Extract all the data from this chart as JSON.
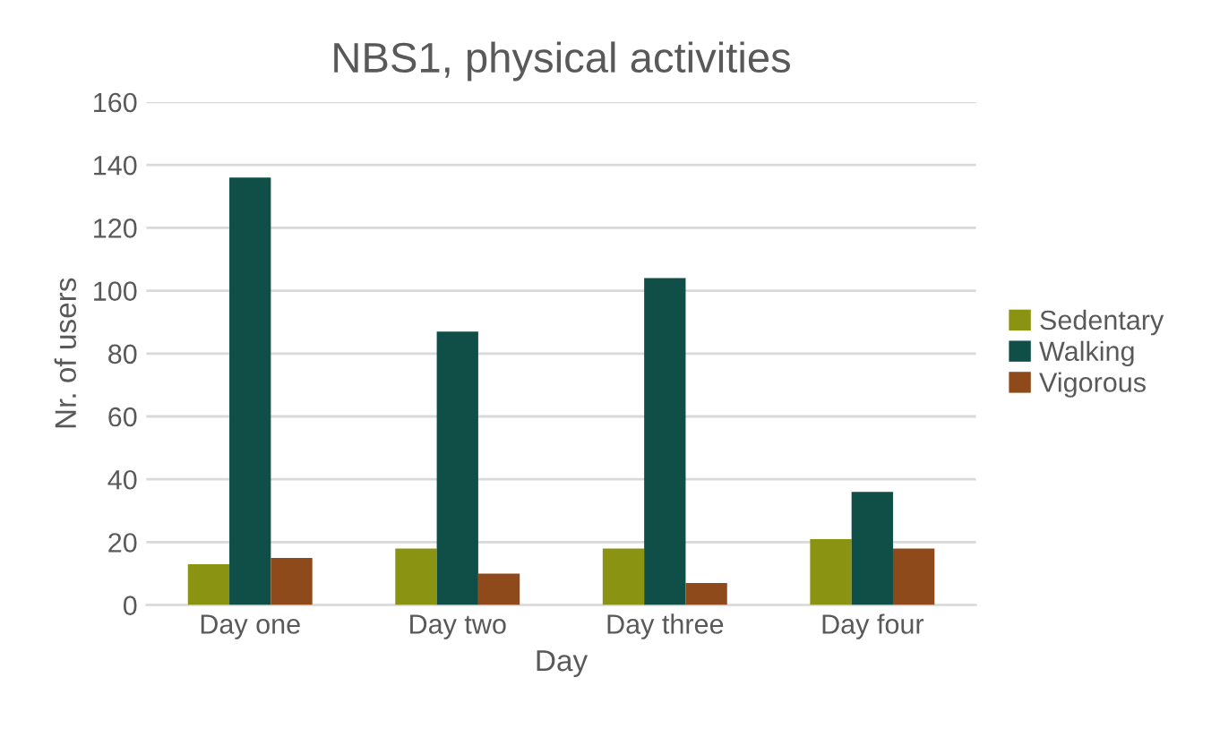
{
  "chart_data": {
    "type": "bar",
    "title": "NBS1, physical activities",
    "xlabel": "Day",
    "ylabel": "Nr. of users",
    "categories": [
      "Day one",
      "Day two",
      "Day three",
      "Day four"
    ],
    "series": [
      {
        "name": "Sedentary",
        "color": "#8a9412",
        "values": [
          13,
          18,
          18,
          21
        ]
      },
      {
        "name": "Walking",
        "color": "#0f4f47",
        "values": [
          136,
          87,
          104,
          36
        ]
      },
      {
        "name": "Vigorous",
        "color": "#8e4a1a",
        "values": [
          15,
          10,
          7,
          18
        ]
      }
    ],
    "ylim": [
      0,
      160
    ],
    "yticks": [
      0,
      20,
      40,
      60,
      80,
      100,
      120,
      140,
      160
    ],
    "grid": "y",
    "legend": "right"
  }
}
